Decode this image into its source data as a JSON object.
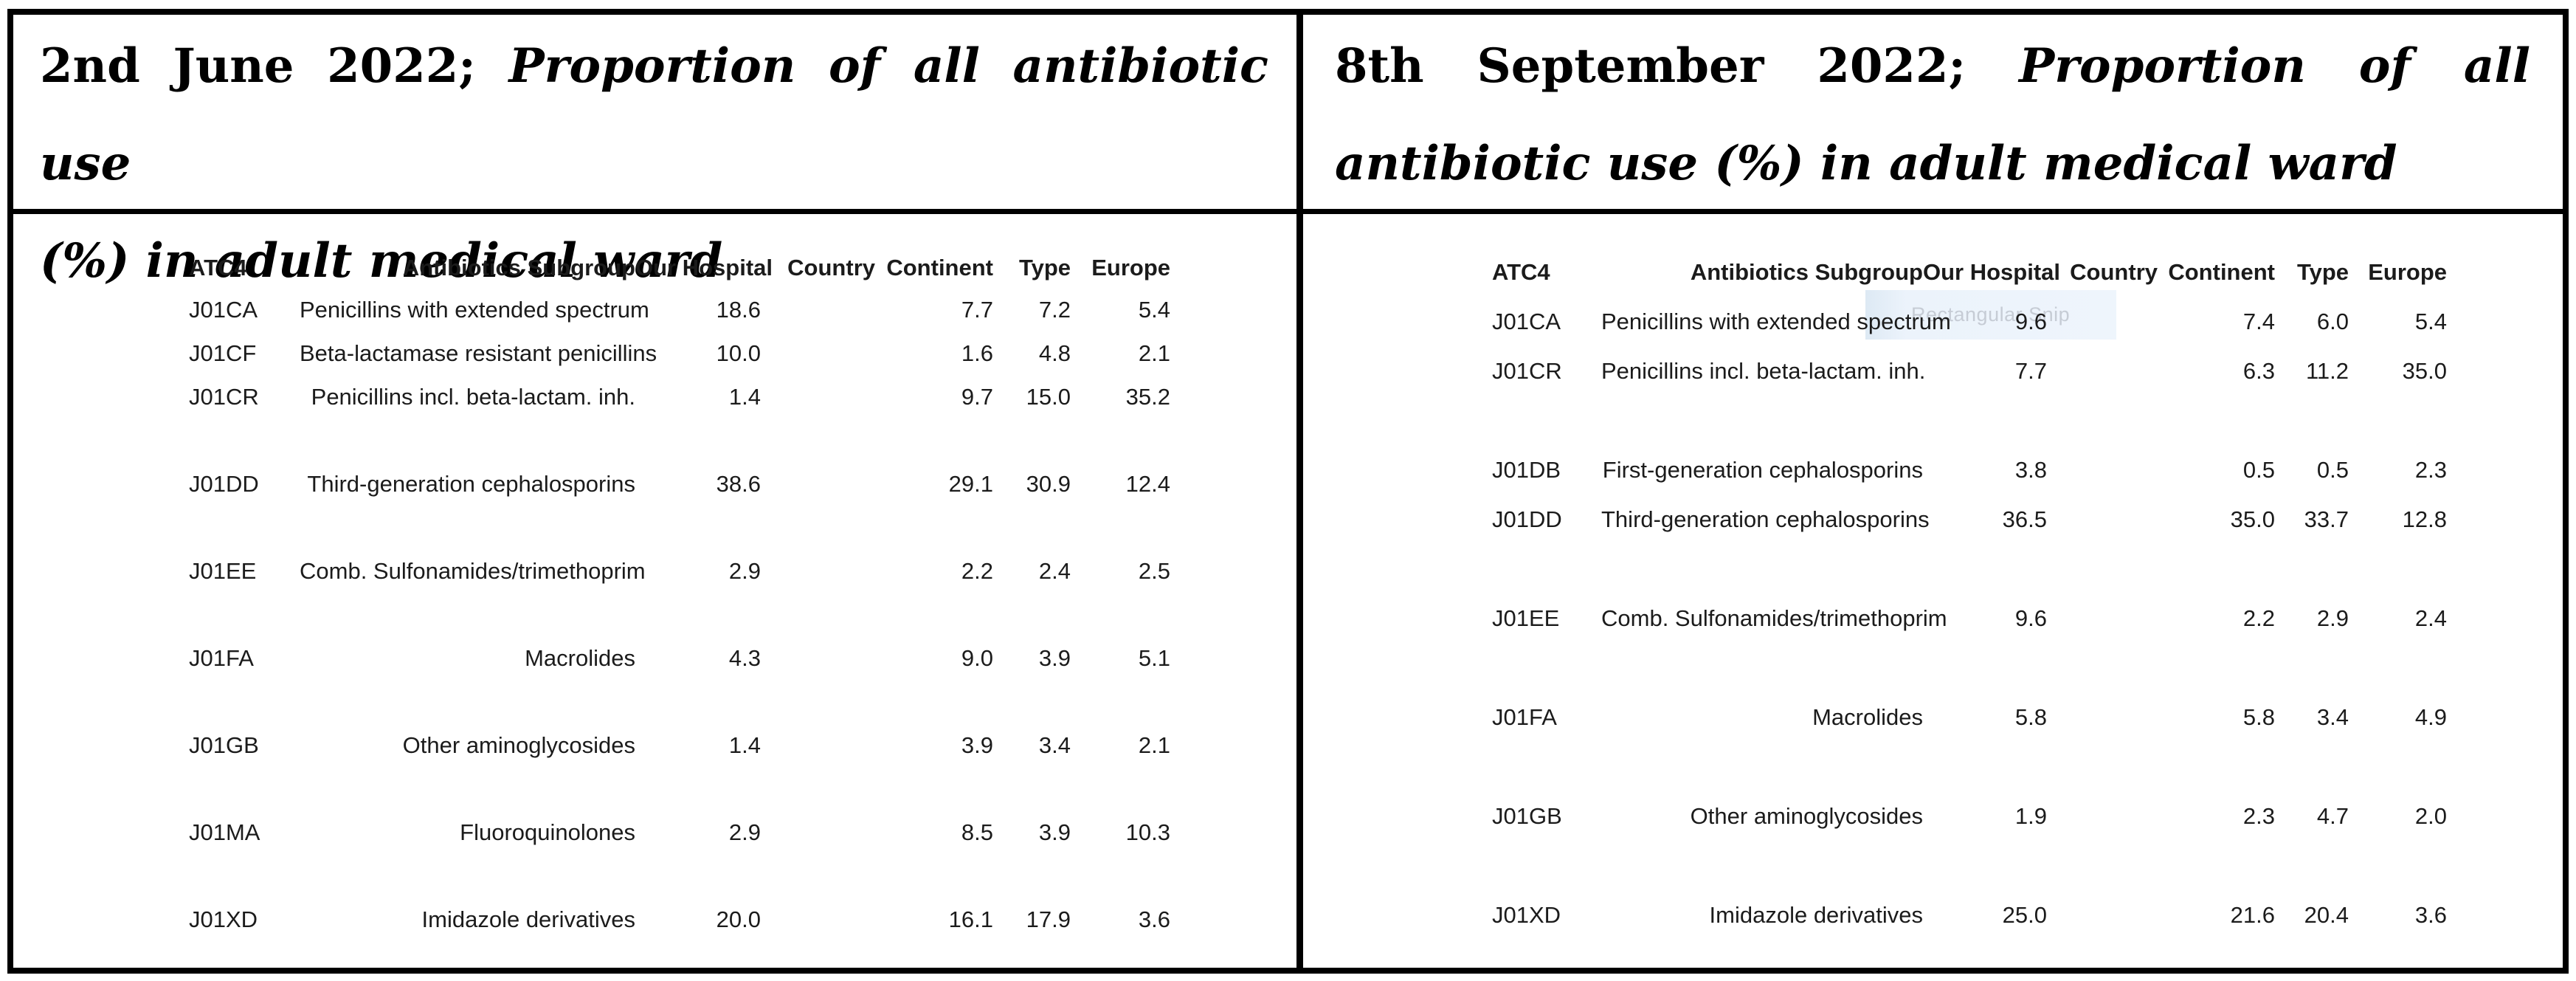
{
  "panels": [
    {
      "title": {
        "bold": "2nd June 2022;",
        "italic_line1": "Proportion of all antibiotic use",
        "line2": "(%) in adult medical ward"
      },
      "table": {
        "columns": [
          "ATC4",
          "Antibiotics Subgroup",
          "Our Hospital",
          "Country",
          "Continent",
          "Type",
          "Europe"
        ],
        "rows": [
          [
            "J01CA",
            "Penicillins with extended spectrum",
            "18.6",
            "",
            "7.7",
            "7.2",
            "5.4"
          ],
          [
            "J01CF",
            "Beta-lactamase resistant penicillins",
            "10.0",
            "",
            "1.6",
            "4.8",
            "2.1"
          ],
          [
            "J01CR",
            "Penicillins incl. beta-lactam. inh.",
            "1.4",
            "",
            "9.7",
            "15.0",
            "35.2"
          ],
          [],
          [
            "J01DD",
            "Third-generation cephalosporins",
            "38.6",
            "",
            "29.1",
            "30.9",
            "12.4"
          ],
          [],
          [
            "J01EE",
            "Comb. Sulfonamides/trimethoprim",
            "2.9",
            "",
            "2.2",
            "2.4",
            "2.5"
          ],
          [],
          [
            "J01FA",
            "Macrolides",
            "4.3",
            "",
            "9.0",
            "3.9",
            "5.1"
          ],
          [],
          [
            "J01GB",
            "Other aminoglycosides",
            "1.4",
            "",
            "3.9",
            "3.4",
            "2.1"
          ],
          [],
          [
            "J01MA",
            "Fluoroquinolones",
            "2.9",
            "",
            "8.5",
            "3.9",
            "10.3"
          ],
          [],
          [
            "J01XD",
            "Imidazole derivatives",
            "20.0",
            "",
            "16.1",
            "17.9",
            "3.6"
          ]
        ]
      }
    },
    {
      "title": {
        "bold": "8th September 2022;",
        "italic_line1": "Proportion of all",
        "line2": "antibiotic use (%) in adult medical ward"
      },
      "table": {
        "columns": [
          "ATC4",
          "Antibiotics Subgroup",
          "Our Hospital",
          "Country",
          "Continent",
          "Type",
          "Europe"
        ],
        "rows": [
          [
            "J01CA",
            "Penicillins with extended spectrum",
            "9.6",
            "",
            "7.4",
            "6.0",
            "5.4"
          ],
          [
            "J01CR",
            "Penicillins incl. beta-lactam. inh.",
            "7.7",
            "",
            "6.3",
            "11.2",
            "35.0"
          ],
          [],
          [
            "J01DB",
            "First-generation cephalosporins",
            "3.8",
            "",
            "0.5",
            "0.5",
            "2.3"
          ],
          [
            "J01DD",
            "Third-generation cephalosporins",
            "36.5",
            "",
            "35.0",
            "33.7",
            "12.8"
          ],
          [],
          [
            "J01EE",
            "Comb. Sulfonamides/trimethoprim",
            "9.6",
            "",
            "2.2",
            "2.9",
            "2.4"
          ],
          [],
          [
            "J01FA",
            "Macrolides",
            "5.8",
            "",
            "5.8",
            "3.4",
            "4.9"
          ],
          [],
          [
            "J01GB",
            "Other aminoglycosides",
            "1.9",
            "",
            "2.3",
            "4.7",
            "2.0"
          ],
          [],
          [
            "J01XD",
            "Imidazole derivatives",
            "25.0",
            "",
            "21.6",
            "20.4",
            "3.6"
          ]
        ]
      }
    }
  ],
  "overlay": {
    "label": "Rectangular Snip"
  }
}
